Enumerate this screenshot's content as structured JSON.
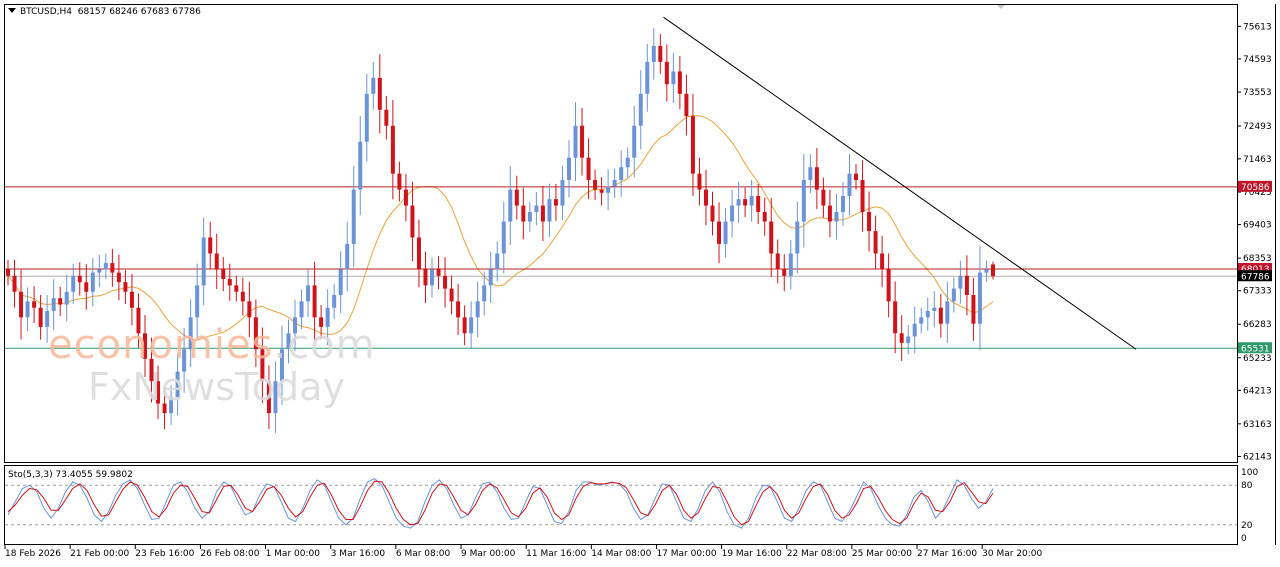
{
  "header": {
    "symbol_label": "BTCUSD,H4",
    "ohlc_label": "68157 68246 67683 67786"
  },
  "stochastic": {
    "label": "Sto(5,3,3) 73.4055 59.9802",
    "levels_shown": [
      "100",
      "80",
      "20",
      "0"
    ],
    "main_color": "#6b93d6",
    "signal_color": "#d0131a",
    "main": [
      35,
      55,
      75,
      80,
      70,
      45,
      30,
      45,
      70,
      85,
      80,
      60,
      35,
      25,
      40,
      65,
      82,
      88,
      75,
      50,
      28,
      30,
      55,
      80,
      85,
      70,
      45,
      30,
      40,
      70,
      85,
      78,
      55,
      35,
      40,
      65,
      82,
      78,
      55,
      30,
      25,
      45,
      72,
      88,
      80,
      55,
      30,
      20,
      30,
      60,
      85,
      90,
      80,
      55,
      30,
      18,
      15,
      25,
      55,
      80,
      88,
      75,
      50,
      30,
      35,
      60,
      82,
      85,
      70,
      45,
      28,
      30,
      55,
      78,
      75,
      50,
      25,
      22,
      40,
      72,
      85,
      85,
      80,
      82,
      85,
      82,
      70,
      45,
      28,
      35,
      60,
      82,
      80,
      55,
      30,
      25,
      45,
      72,
      85,
      70,
      40,
      20,
      15,
      30,
      60,
      80,
      78,
      55,
      30,
      25,
      45,
      72,
      85,
      80,
      55,
      30,
      25,
      40,
      62,
      85,
      75,
      50,
      30,
      20,
      18,
      35,
      62,
      72,
      55,
      30,
      42,
      65,
      88,
      80,
      60,
      45,
      55,
      75
    ],
    "signal": [
      40,
      50,
      65,
      75,
      73,
      60,
      42,
      42,
      58,
      75,
      82,
      72,
      50,
      33,
      35,
      55,
      74,
      85,
      80,
      62,
      40,
      32,
      45,
      68,
      80,
      78,
      60,
      40,
      38,
      58,
      78,
      80,
      65,
      45,
      40,
      55,
      74,
      78,
      65,
      45,
      32,
      40,
      62,
      80,
      83,
      65,
      42,
      28,
      28,
      48,
      72,
      86,
      85,
      68,
      45,
      28,
      20,
      22,
      42,
      68,
      82,
      80,
      62,
      42,
      35,
      50,
      72,
      82,
      76,
      58,
      38,
      32,
      45,
      68,
      76,
      62,
      38,
      28,
      35,
      60,
      78,
      84,
      82,
      82,
      84,
      83,
      76,
      58,
      38,
      34,
      50,
      72,
      80,
      66,
      42,
      30,
      38,
      60,
      78,
      76,
      55,
      32,
      20,
      25,
      48,
      70,
      78,
      66,
      42,
      30,
      38,
      60,
      78,
      82,
      66,
      42,
      30,
      35,
      52,
      75,
      78,
      62,
      42,
      28,
      22,
      30,
      52,
      68,
      62,
      42,
      40,
      55,
      78,
      84,
      70,
      55,
      52,
      68
    ]
  },
  "chart_data": {
    "type": "candlestick",
    "title": "BTCUSD,H4",
    "ohlc_header": {
      "open": 68157,
      "high": 68246,
      "low": 67683,
      "close": 67786
    },
    "y_ticks": [
      75613,
      74593,
      73553,
      72493,
      71463,
      70423,
      69403,
      68353,
      67333,
      66283,
      65233,
      64213,
      63163,
      62143
    ],
    "x_ticks": [
      "18 Feb 2026",
      "21 Feb 00:00",
      "23 Feb 16:00",
      "26 Feb 08:00",
      "1 Mar 00:00",
      "3 Mar 16:00",
      "6 Mar 08:00",
      "9 Mar 00:00",
      "11 Mar 16:00",
      "14 Mar 08:00",
      "17 Mar 00:00",
      "19 Mar 16:00",
      "22 Mar 08:00",
      "25 Mar 00:00",
      "27 Mar 16:00",
      "30 Mar 20:00"
    ],
    "ylim": [
      62000,
      76250
    ],
    "bull_color": "#6b93d6",
    "bear_color": "#d0131a",
    "moving_average_color": "#e8a33c",
    "closes": [
      67800,
      67300,
      66500,
      67000,
      66800,
      66200,
      66700,
      67100,
      66900,
      67300,
      67800,
      67600,
      67300,
      67900,
      68000,
      68200,
      67900,
      67600,
      67300,
      66800,
      66000,
      65200,
      64500,
      63800,
      63500,
      64000,
      64800,
      65500,
      66500,
      67500,
      69000,
      68500,
      68000,
      67700,
      67500,
      67300,
      67000,
      66500,
      65500,
      64500,
      63500,
      64500,
      65500,
      66000,
      66500,
      67000,
      67500,
      66500,
      66200,
      66800,
      67200,
      68000,
      68800,
      70500,
      72000,
      73500,
      74000,
      73000,
      72500,
      71000,
      70500,
      70000,
      69000,
      68000,
      67500,
      68000,
      67800,
      67400,
      67000,
      66500,
      66000,
      66500,
      67000,
      67500,
      68000,
      68500,
      69500,
      70500,
      70000,
      69500,
      69800,
      70000,
      69500,
      70200,
      70000,
      70800,
      71500,
      72500,
      71500,
      70800,
      70500,
      70400,
      70600,
      70800,
      71200,
      71500,
      72500,
      73500,
      74500,
      75000,
      74500,
      73800,
      74200,
      73500,
      72800,
      71000,
      70500,
      70000,
      69500,
      68800,
      69500,
      70000,
      70200,
      70000,
      70300,
      69800,
      69500,
      68500,
      68000,
      67800,
      68500,
      69500,
      70800,
      71200,
      70500,
      70000,
      69500,
      69800,
      70300,
      71000,
      70800,
      69800,
      69200,
      68500,
      68000,
      67000,
      66000,
      65700,
      65900,
      66300,
      66500,
      66700,
      66800,
      66300,
      67000,
      67400,
      67800,
      67200,
      66300,
      67900,
      68000,
      67786
    ],
    "horizontal_levels": [
      {
        "price": 70586,
        "label": "70586",
        "color": "#c0142a",
        "line": "#b32020"
      },
      {
        "price": 68013,
        "label": "68013",
        "color": "#c0142a",
        "line": "#b32020"
      },
      {
        "price": 67786,
        "label": "67786",
        "color": "#000000",
        "line": "#b0b0b0"
      },
      {
        "price": 65531,
        "label": "65531",
        "color": "#2e9a6a",
        "line": "#2e9a6a"
      }
    ],
    "trendline": {
      "from": {
        "x": "17 Mar 00:00",
        "y": 75900
      },
      "to": {
        "x": "1 Apr 08:00",
        "y": 65500
      }
    }
  },
  "watermark": {
    "line1_main": "economies",
    "line1_tld": ".com",
    "line2": "FxNewsToday"
  }
}
